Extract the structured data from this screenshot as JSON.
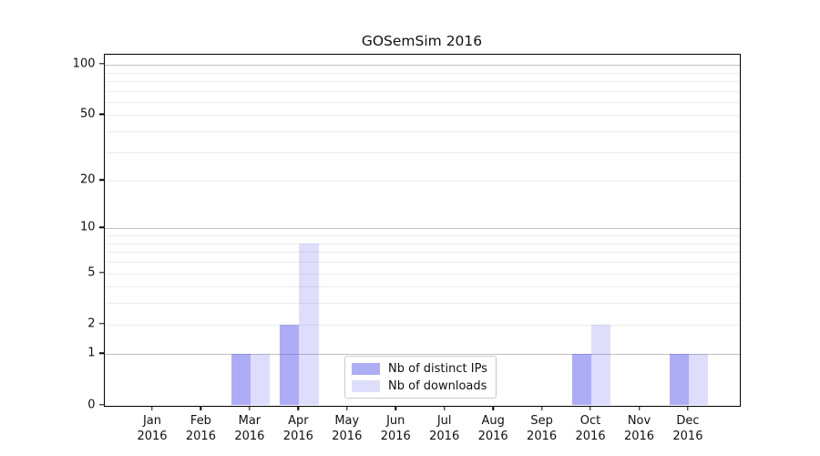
{
  "chart_data": {
    "type": "bar",
    "title": "GOSemSim 2016",
    "categories": [
      "Jan",
      "Feb",
      "Mar",
      "Apr",
      "May",
      "Jun",
      "Jul",
      "Aug",
      "Sep",
      "Oct",
      "Nov",
      "Dec"
    ],
    "category_year": "2016",
    "series": [
      {
        "name": "Nb of distinct IPs",
        "color": "#5c5cee",
        "alpha": 0.5,
        "solid_color": "#adadf6",
        "values": [
          0,
          0,
          1,
          2,
          0,
          0,
          0,
          0,
          0,
          1,
          0,
          1
        ]
      },
      {
        "name": "Nb of downloads",
        "color": "#5c5cee",
        "alpha": 0.2,
        "solid_color": "#dedefc",
        "values": [
          0,
          0,
          1,
          8,
          0,
          0,
          0,
          0,
          0,
          2,
          0,
          1
        ]
      }
    ],
    "y_ticks": [
      0,
      1,
      2,
      5,
      10,
      20,
      50,
      100
    ],
    "y_scale": "log10(value+1)",
    "ylim": [
      0,
      110
    ],
    "grid_major": [
      1,
      10,
      100
    ],
    "grid_minor": [
      2,
      3,
      4,
      5,
      6,
      7,
      8,
      9,
      20,
      30,
      40,
      50,
      60,
      70,
      80,
      90
    ],
    "grid": "on",
    "legend_position": "lower center"
  }
}
